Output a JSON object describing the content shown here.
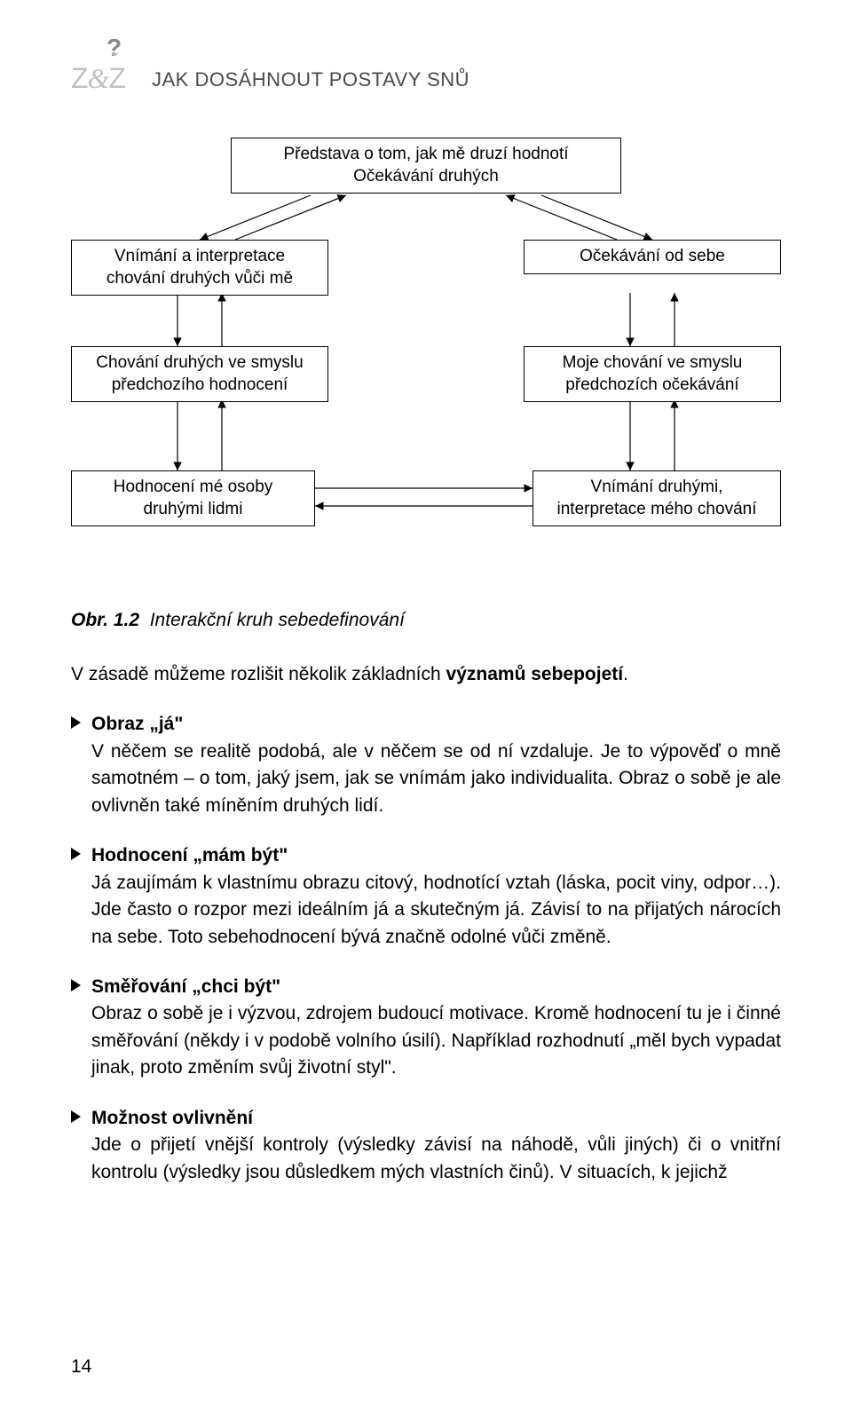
{
  "header": {
    "qmark": "?",
    "logo_z1": "Z",
    "logo_amp": "&",
    "logo_z2": "Z",
    "title": "JAK DOSÁHNOUT POSTAVY SNŮ"
  },
  "diagram": {
    "boxes": {
      "top": "Představa o tom, jak mě druzí hodnotí\nOčekávání druhých",
      "left1": "Vnímání a interpretace\nchování druhých vůči mě",
      "right1": "Očekávání od sebe",
      "left2": "Chování druhých ve smyslu\npředchozího hodnocení",
      "right2": "Moje chování ve smyslu\npředchozích očekávání",
      "left3": "Hodnocení mé osoby\ndruhými lidmi",
      "right3": "Vnímání druhými,\ninterpretace mého chování"
    }
  },
  "caption_label": "Obr. 1.2",
  "caption_text": "Interakční kruh sebedefinování",
  "intro_pre": "V zásadě můžeme rozlišit několik základních ",
  "intro_bold": "významů sebepojetí",
  "intro_post": ".",
  "items": [
    {
      "title": "Obraz „já\"",
      "text": "V něčem se realitě podobá, ale v něčem se od ní vzdaluje. Je to výpověď o mně samotném – o tom, jaký jsem, jak se vnímám jako individualita. Obraz o sobě je ale ovlivněn také míněním druhých lidí."
    },
    {
      "title": "Hodnocení „mám být\"",
      "text": "Já zaujímám k vlastnímu obrazu citový, hodnotící vztah (láska, pocit viny, odpor…). Jde často o rozpor mezi ideálním já a skutečným já. Závisí to na přijatých nárocích na sebe. Toto sebehodnocení bývá značně odolné vůči změně."
    },
    {
      "title": "Směřování „chci být\"",
      "text": "Obraz o sobě je i výzvou, zdrojem budoucí motivace. Kromě hodnocení tu je i činné směřování (někdy i v podobě volního úsilí). Například rozhodnutí „měl bych vypadat jinak, proto změním svůj životní styl\"."
    },
    {
      "title": "Možnost ovlivnění",
      "text": "Jde o přijetí vnější kontroly (výsledky závisí na náhodě, vůli jiných) či o vnitřní kontrolu (výsledky jsou důsledkem mých vlastních činů). V situacích, k jejichž"
    }
  ],
  "page_number": "14"
}
